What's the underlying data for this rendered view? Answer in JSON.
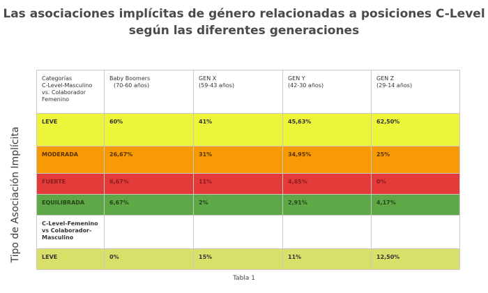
{
  "title_line1": "Las asociaciones implícitas de género relacionadas a posiciones C-Level",
  "title_line2": "según las diferentes generaciones",
  "y_axis_label": "Tipo de Asociación Implícita",
  "caption": "Tabla 1",
  "header": {
    "col0": [
      "Categorías",
      "C-Level-Masculino",
      "vs. Colaborador",
      "Femenino"
    ],
    "baby_boomers": [
      "Baby Boomers",
      "(70-60 años)"
    ],
    "gen_x": [
      "GEN X",
      "(59-43 años)"
    ],
    "gen_y": [
      "GEN Y",
      "(42-30 años)"
    ],
    "gen_z": [
      "GEN Z",
      "(29-14 años)"
    ]
  },
  "rows": [
    {
      "label": "LEVE",
      "values": [
        "60%",
        "41%",
        "45,63%",
        "62,50%"
      ],
      "color": "#edf53a"
    },
    {
      "label": "MODERADA",
      "values": [
        "26,67%",
        "31%",
        "34,95%",
        "25%"
      ],
      "color": "#f89a05"
    },
    {
      "label": "FUERTE",
      "values": [
        "6,67%",
        "11%",
        "4,85%",
        "0%"
      ],
      "color": "#e43a3a"
    },
    {
      "label": "EQUILIBRADA",
      "values": [
        "6,67%",
        "2%",
        "2,91%",
        "4,17%"
      ],
      "color": "#5fa847"
    }
  ],
  "section2": {
    "label": [
      "C-Level-Femenino",
      "vs Colaborador-",
      "Masculino"
    ],
    "row": {
      "label": "LEVE",
      "values": [
        "0%",
        "15%",
        "11%",
        "12,50%"
      ],
      "color": "#d9e06a"
    }
  }
}
